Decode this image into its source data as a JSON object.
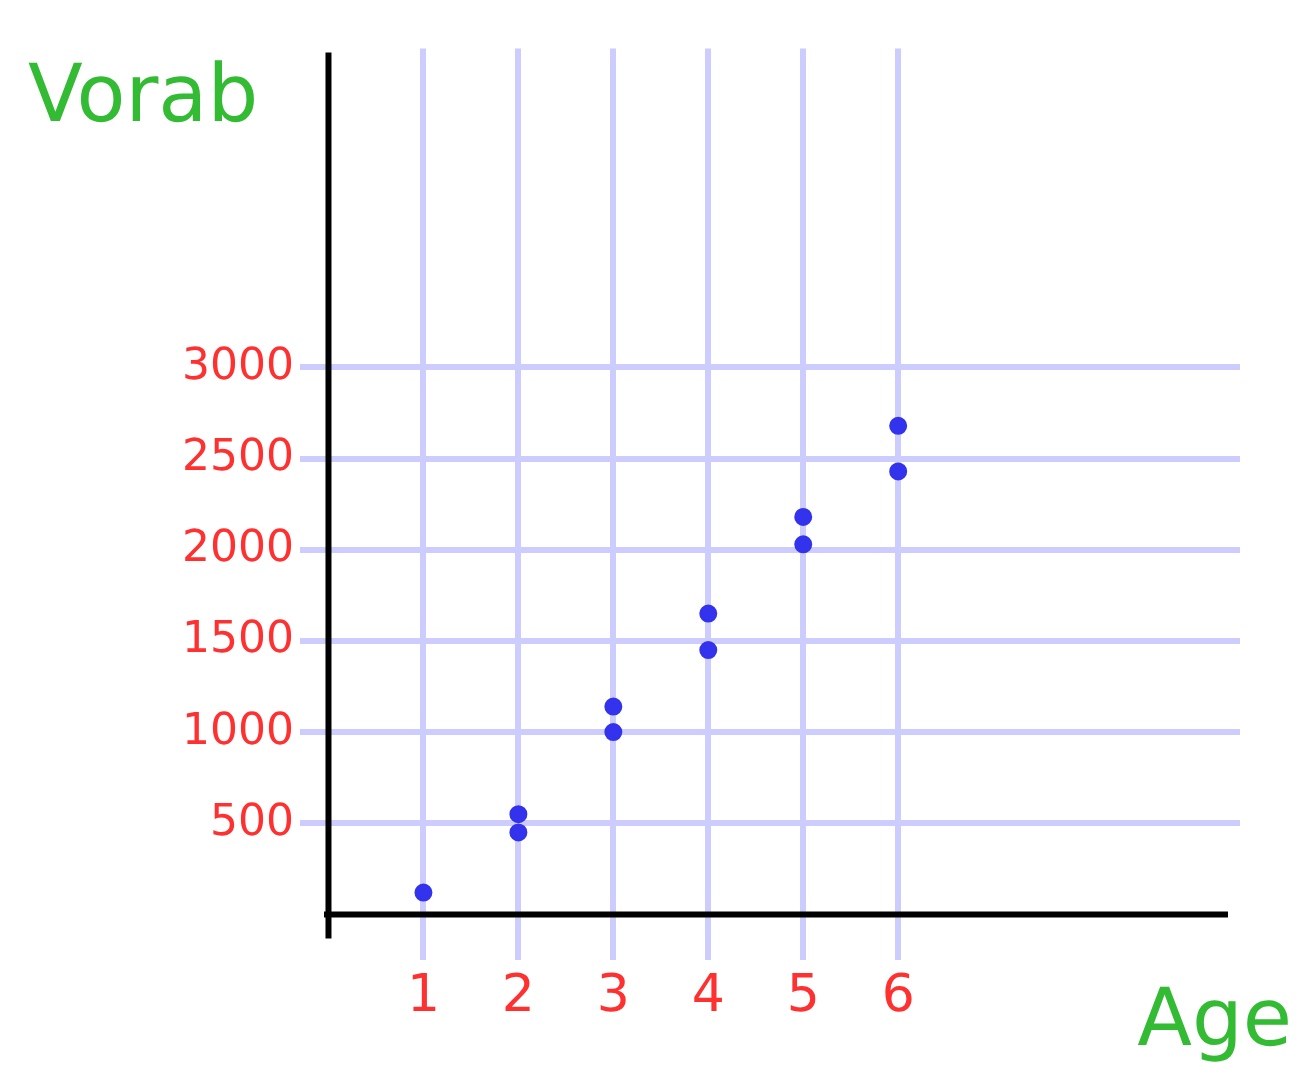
{
  "chart_data": {
    "type": "scatter",
    "xlabel": "Age",
    "ylabel": "Vorab",
    "series": [
      {
        "color": "#3333ee",
        "x": [
          1,
          2,
          2,
          3,
          3,
          4,
          4,
          5,
          5,
          6,
          6
        ],
        "values": [
          120,
          550,
          450,
          1140,
          1000,
          1650,
          1450,
          2180,
          2030,
          2680,
          2430
        ]
      }
    ],
    "xlim": [
      -0.3,
      9.6
    ],
    "xticks": [
      1,
      2,
      3,
      4,
      5,
      6
    ],
    "ylim": [
      -250,
      4750
    ],
    "yticks": [
      500,
      1000,
      1500,
      2000,
      2500,
      3000
    ],
    "grid": true,
    "marker": "circle",
    "legend": false
  }
}
